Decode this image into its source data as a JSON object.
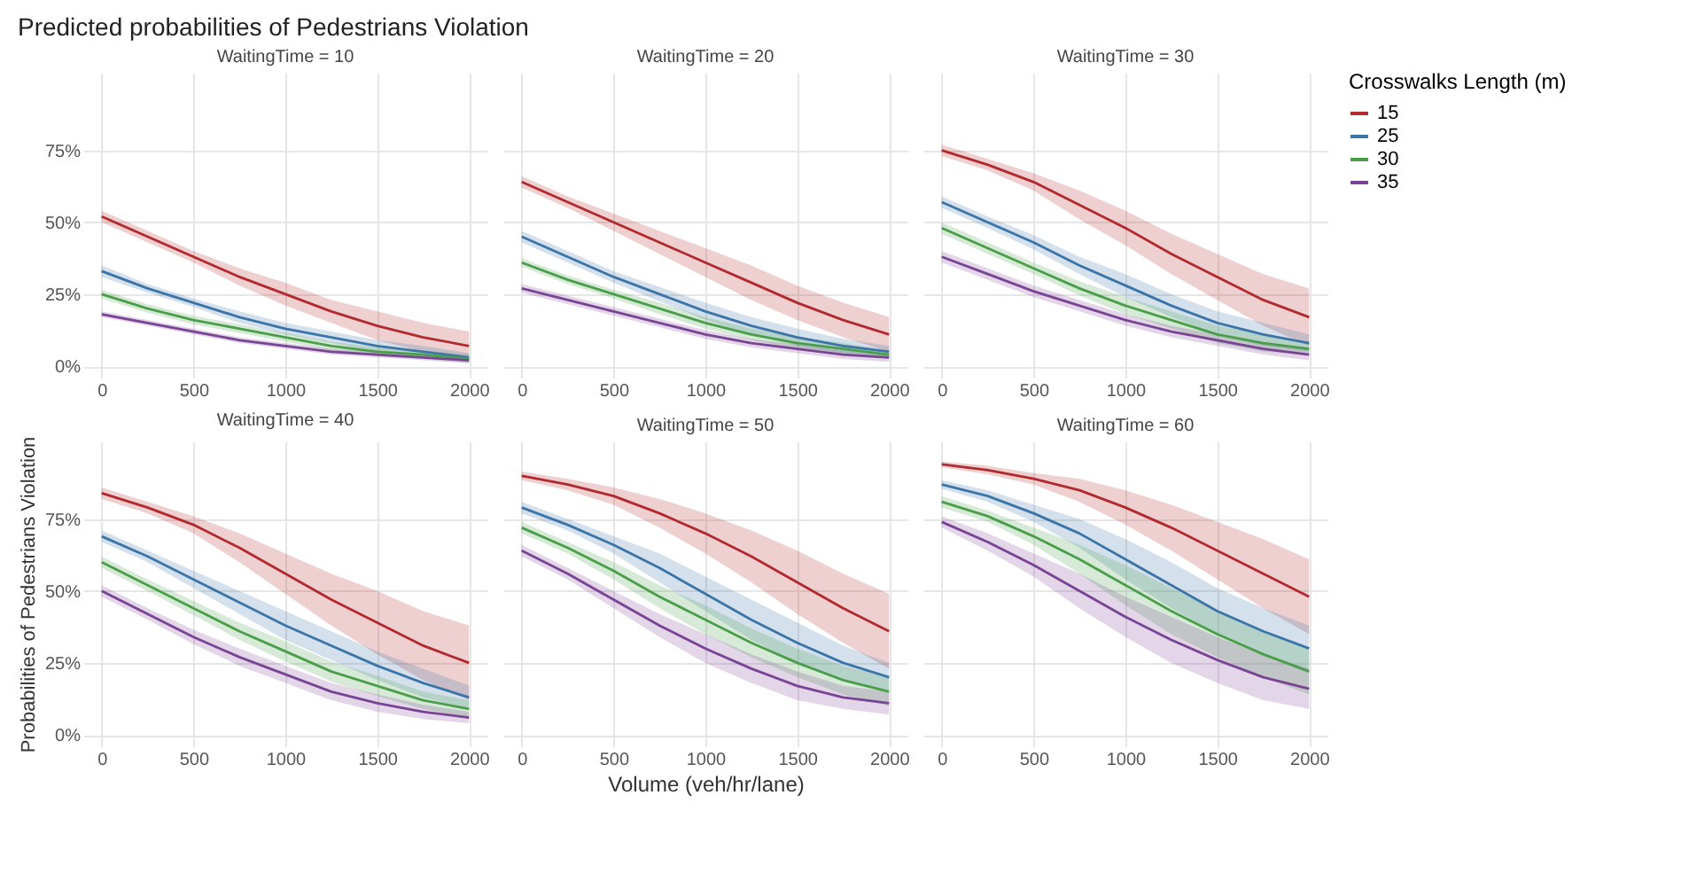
{
  "chart_data": [
    {
      "type": "line",
      "title": "Predicted probabilities of Pedestrians Violation",
      "subtitle": "WaitingTime = 10",
      "legend": "right",
      "legend_title": "Crosswalks Length (m)",
      "x": [
        0,
        250,
        500,
        750,
        1000,
        1250,
        1500,
        1750,
        2000
      ],
      "xlim": [
        -100,
        2100
      ],
      "xticks": [
        0,
        500,
        1000,
        1500,
        2000
      ],
      "ylim": [
        -4,
        102
      ],
      "yticks": [
        {
          "value": 0,
          "label": "0%"
        },
        {
          "value": 25,
          "label": "25%"
        },
        {
          "value": 50,
          "label": "50%"
        },
        {
          "value": 75,
          "label": "75%"
        }
      ],
      "grid": true,
      "series": [
        {
          "name": "15",
          "color": "#b2292e",
          "values": [
            52,
            45,
            38,
            31,
            25,
            19,
            14,
            10,
            7
          ],
          "lower": [
            50,
            43,
            36,
            28,
            21,
            15,
            9,
            5,
            2
          ],
          "upper": [
            54,
            47,
            40,
            34,
            29,
            23,
            19,
            15,
            12
          ]
        },
        {
          "name": "25",
          "color": "#3b75a8",
          "values": [
            33,
            27,
            22,
            17,
            13,
            10,
            7,
            5,
            3
          ],
          "lower": [
            31,
            25.5,
            20.5,
            15,
            11,
            8,
            5,
            3,
            1.5
          ],
          "upper": [
            35,
            28.5,
            23.5,
            19,
            15,
            12,
            9,
            7,
            4.5
          ]
        },
        {
          "name": "30",
          "color": "#4a9e4a",
          "values": [
            25,
            20,
            16,
            13,
            10,
            7,
            5,
            4,
            2.5
          ],
          "lower": [
            23.5,
            18.5,
            14.5,
            11.5,
            8.5,
            5.5,
            3.5,
            2.5,
            1
          ],
          "upper": [
            26.5,
            21.5,
            17.5,
            14.5,
            11.5,
            8.5,
            6.5,
            5.5,
            4
          ]
        },
        {
          "name": "35",
          "color": "#7a4494",
          "values": [
            18,
            15,
            12,
            9,
            7,
            5,
            4,
            3,
            2
          ],
          "lower": [
            17,
            14,
            11,
            8,
            6,
            4,
            3,
            2,
            1
          ],
          "upper": [
            19,
            16,
            13,
            10,
            8,
            6,
            5,
            4,
            3
          ]
        }
      ]
    },
    {
      "type": "line",
      "subtitle": "WaitingTime = 20",
      "x": [
        0,
        250,
        500,
        750,
        1000,
        1250,
        1500,
        1750,
        2000
      ],
      "xlim": [
        -100,
        2100
      ],
      "xticks": [
        0,
        500,
        1000,
        1500,
        2000
      ],
      "ylim": [
        -4,
        102
      ],
      "yticks": [
        0,
        25,
        50,
        75
      ],
      "grid": true,
      "tick_labels": "x",
      "series": [
        {
          "name": "15",
          "color": "#b2292e",
          "values": [
            64,
            57,
            50,
            43,
            36,
            29,
            22,
            16,
            11
          ],
          "lower": [
            62,
            55,
            47,
            39,
            31,
            23,
            16,
            10,
            5
          ],
          "upper": [
            66,
            59,
            53,
            47,
            41,
            35,
            28,
            22,
            17
          ]
        },
        {
          "name": "25",
          "color": "#3b75a8",
          "values": [
            45,
            38,
            31,
            25,
            19,
            14,
            10,
            7,
            5
          ],
          "lower": [
            43,
            36,
            29,
            22.5,
            16,
            11,
            7,
            4.5,
            3
          ],
          "upper": [
            47,
            40,
            33,
            27.5,
            22,
            17,
            13,
            9.5,
            7
          ]
        },
        {
          "name": "30",
          "color": "#4a9e4a",
          "values": [
            36,
            30,
            25,
            20,
            15,
            11,
            8,
            6,
            4
          ],
          "lower": [
            34.5,
            28.5,
            23.5,
            18,
            13,
            9,
            6,
            4,
            2.5
          ],
          "upper": [
            37.5,
            31.5,
            26.5,
            22,
            17,
            13,
            10,
            8,
            5.5
          ]
        },
        {
          "name": "35",
          "color": "#7a4494",
          "values": [
            27,
            23,
            19,
            15,
            11,
            8,
            6,
            4,
            3
          ],
          "lower": [
            25.5,
            21.5,
            17.5,
            13.5,
            9.5,
            6.5,
            4.5,
            2.5,
            1.5
          ],
          "upper": [
            28.5,
            24.5,
            20.5,
            16.5,
            12.5,
            9.5,
            7.5,
            5.5,
            4.5
          ]
        }
      ]
    },
    {
      "type": "line",
      "subtitle": "WaitingTime = 30",
      "x": [
        0,
        250,
        500,
        750,
        1000,
        1250,
        1500,
        1750,
        2000
      ],
      "xlim": [
        -100,
        2100
      ],
      "xticks": [
        0,
        500,
        1000,
        1500,
        2000
      ],
      "ylim": [
        -4,
        102
      ],
      "yticks": [
        0,
        25,
        50,
        75
      ],
      "grid": true,
      "tick_labels": "x",
      "series": [
        {
          "name": "15",
          "color": "#b2292e",
          "values": [
            75,
            70,
            64,
            56,
            48,
            39,
            31,
            23,
            17
          ],
          "lower": [
            73,
            68,
            61,
            51,
            42,
            32,
            23,
            14,
            7
          ],
          "upper": [
            77,
            72,
            67,
            61,
            54,
            46,
            39,
            32,
            27
          ]
        },
        {
          "name": "25",
          "color": "#3b75a8",
          "values": [
            57,
            50,
            43,
            35,
            28,
            21,
            15,
            11,
            8
          ],
          "lower": [
            55,
            48,
            40.5,
            32,
            24,
            17,
            11,
            7,
            5
          ],
          "upper": [
            59,
            52,
            45.5,
            38,
            32,
            25,
            19,
            15,
            11
          ]
        },
        {
          "name": "30",
          "color": "#4a9e4a",
          "values": [
            48,
            41,
            34,
            27,
            21,
            16,
            11,
            8,
            6
          ],
          "lower": [
            46,
            39,
            32,
            24.5,
            18,
            13,
            8,
            5,
            4
          ],
          "upper": [
            50,
            43,
            36,
            29.5,
            24,
            19,
            14,
            11,
            8
          ]
        },
        {
          "name": "35",
          "color": "#7a4494",
          "values": [
            38,
            32,
            26,
            21,
            16,
            12,
            9,
            6,
            4
          ],
          "lower": [
            36,
            30,
            24,
            19,
            14,
            10,
            7,
            4,
            2
          ],
          "upper": [
            40,
            34,
            28,
            23,
            18,
            14,
            11,
            8,
            6
          ]
        }
      ]
    },
    {
      "type": "line",
      "subtitle": "WaitingTime = 40",
      "ylabel": "Probabilities of Pedestrians Violation",
      "x": [
        0,
        250,
        500,
        750,
        1000,
        1250,
        1500,
        1750,
        2000
      ],
      "xlim": [
        -100,
        2100
      ],
      "xticks": [
        0,
        500,
        1000,
        1500,
        2000
      ],
      "ylim": [
        -4,
        102
      ],
      "yticks": [
        {
          "value": 0,
          "label": "0%"
        },
        {
          "value": 25,
          "label": "25%"
        },
        {
          "value": 50,
          "label": "50%"
        },
        {
          "value": 75,
          "label": "75%"
        }
      ],
      "grid": true,
      "series": [
        {
          "name": "15",
          "color": "#b2292e",
          "values": [
            84,
            79,
            73,
            65,
            56,
            47,
            39,
            31,
            25
          ],
          "lower": [
            82,
            77,
            70,
            60,
            49,
            38,
            28,
            19,
            12
          ],
          "upper": [
            86,
            81,
            76,
            70,
            63,
            56,
            50,
            43,
            38
          ]
        },
        {
          "name": "25",
          "color": "#3b75a8",
          "values": [
            69,
            62,
            54,
            46,
            38,
            31,
            24,
            18,
            13
          ],
          "lower": [
            67,
            60,
            51,
            42,
            33,
            26,
            19,
            13,
            9
          ],
          "upper": [
            71,
            64,
            57,
            50,
            43,
            36,
            29,
            23,
            17
          ]
        },
        {
          "name": "30",
          "color": "#4a9e4a",
          "values": [
            60,
            52,
            44,
            36,
            29,
            22,
            17,
            12,
            9
          ],
          "lower": [
            58,
            50,
            41.5,
            33,
            25.5,
            18.5,
            13.5,
            9,
            6
          ],
          "upper": [
            62,
            54,
            46.5,
            39,
            32.5,
            25.5,
            20.5,
            15,
            12
          ]
        },
        {
          "name": "35",
          "color": "#7a4494",
          "values": [
            50,
            42,
            34,
            27,
            21,
            15,
            11,
            8,
            6
          ],
          "lower": [
            48,
            40,
            31.5,
            24,
            18,
            12,
            8,
            5.5,
            4
          ],
          "upper": [
            52,
            44,
            36.5,
            30,
            24,
            18,
            14,
            10.5,
            8
          ]
        }
      ]
    },
    {
      "type": "line",
      "subtitle": "WaitingTime = 50",
      "xlabel": "Volume (veh/hr/lane)",
      "x": [
        0,
        250,
        500,
        750,
        1000,
        1250,
        1500,
        1750,
        2000
      ],
      "xlim": [
        -100,
        2100
      ],
      "xticks": [
        0,
        500,
        1000,
        1500,
        2000
      ],
      "ylim": [
        -4,
        102
      ],
      "yticks": [
        0,
        25,
        50,
        75
      ],
      "grid": true,
      "tick_labels": "x",
      "series": [
        {
          "name": "15",
          "color": "#b2292e",
          "values": [
            90,
            87,
            83,
            77,
            70,
            62,
            53,
            44,
            36
          ],
          "lower": [
            88.5,
            85,
            80,
            72,
            63,
            53,
            42,
            32,
            23
          ],
          "upper": [
            91.5,
            89,
            86,
            82,
            77,
            71,
            64,
            56,
            49
          ]
        },
        {
          "name": "25",
          "color": "#3b75a8",
          "values": [
            79,
            73,
            66,
            58,
            49,
            40,
            32,
            25,
            20
          ],
          "lower": [
            77,
            71,
            63,
            53,
            43,
            33,
            25,
            19,
            15
          ],
          "upper": [
            81,
            75,
            69,
            63,
            55,
            47,
            39,
            31,
            25
          ]
        },
        {
          "name": "30",
          "color": "#4a9e4a",
          "values": [
            72,
            65,
            57,
            48,
            40,
            32,
            25,
            19,
            15
          ],
          "lower": [
            70,
            63,
            54,
            44,
            35,
            27,
            20,
            14,
            10
          ],
          "upper": [
            74,
            67,
            60,
            52,
            45,
            37,
            30,
            24,
            20
          ]
        },
        {
          "name": "35",
          "color": "#7a4494",
          "values": [
            64,
            56,
            47,
            38,
            30,
            23,
            17,
            13,
            11
          ],
          "lower": [
            62,
            54,
            44,
            34,
            25,
            18,
            12,
            9,
            7
          ],
          "upper": [
            66,
            58,
            50,
            42,
            35,
            28,
            22,
            17,
            15
          ]
        }
      ]
    },
    {
      "type": "line",
      "subtitle": "WaitingTime = 60",
      "x": [
        0,
        250,
        500,
        750,
        1000,
        1250,
        1500,
        1750,
        2000
      ],
      "xlim": [
        -100,
        2100
      ],
      "xticks": [
        0,
        500,
        1000,
        1500,
        2000
      ],
      "ylim": [
        -4,
        102
      ],
      "yticks": [
        0,
        25,
        50,
        75
      ],
      "grid": true,
      "tick_labels": "x",
      "series": [
        {
          "name": "15",
          "color": "#b2292e",
          "values": [
            94,
            92,
            89,
            85,
            79,
            72,
            64,
            56,
            48
          ],
          "lower": [
            93,
            90.5,
            87,
            81,
            73,
            64,
            54,
            44,
            35
          ],
          "upper": [
            95,
            93.5,
            91,
            89,
            85,
            80,
            74,
            68,
            61
          ]
        },
        {
          "name": "25",
          "color": "#3b75a8",
          "values": [
            87,
            83,
            77,
            70,
            61,
            52,
            43,
            36,
            30
          ],
          "lower": [
            85.5,
            81,
            74,
            65,
            54,
            44,
            35,
            28,
            22
          ],
          "upper": [
            88.5,
            85,
            80,
            75,
            68,
            60,
            51,
            44,
            38
          ]
        },
        {
          "name": "30",
          "color": "#4a9e4a",
          "values": [
            81,
            76,
            69,
            61,
            52,
            43,
            35,
            28,
            22
          ],
          "lower": [
            79,
            74,
            66,
            56,
            45,
            35,
            27,
            20,
            14
          ],
          "upper": [
            83,
            78,
            72,
            66,
            59,
            51,
            43,
            36,
            30
          ]
        },
        {
          "name": "35",
          "color": "#7a4494",
          "values": [
            74,
            67,
            59,
            50,
            41,
            33,
            26,
            20,
            16
          ],
          "lower": [
            72,
            64,
            55,
            44,
            34,
            25,
            18,
            12,
            9
          ],
          "upper": [
            76,
            70,
            63,
            56,
            48,
            41,
            34,
            28,
            23
          ]
        }
      ]
    }
  ]
}
